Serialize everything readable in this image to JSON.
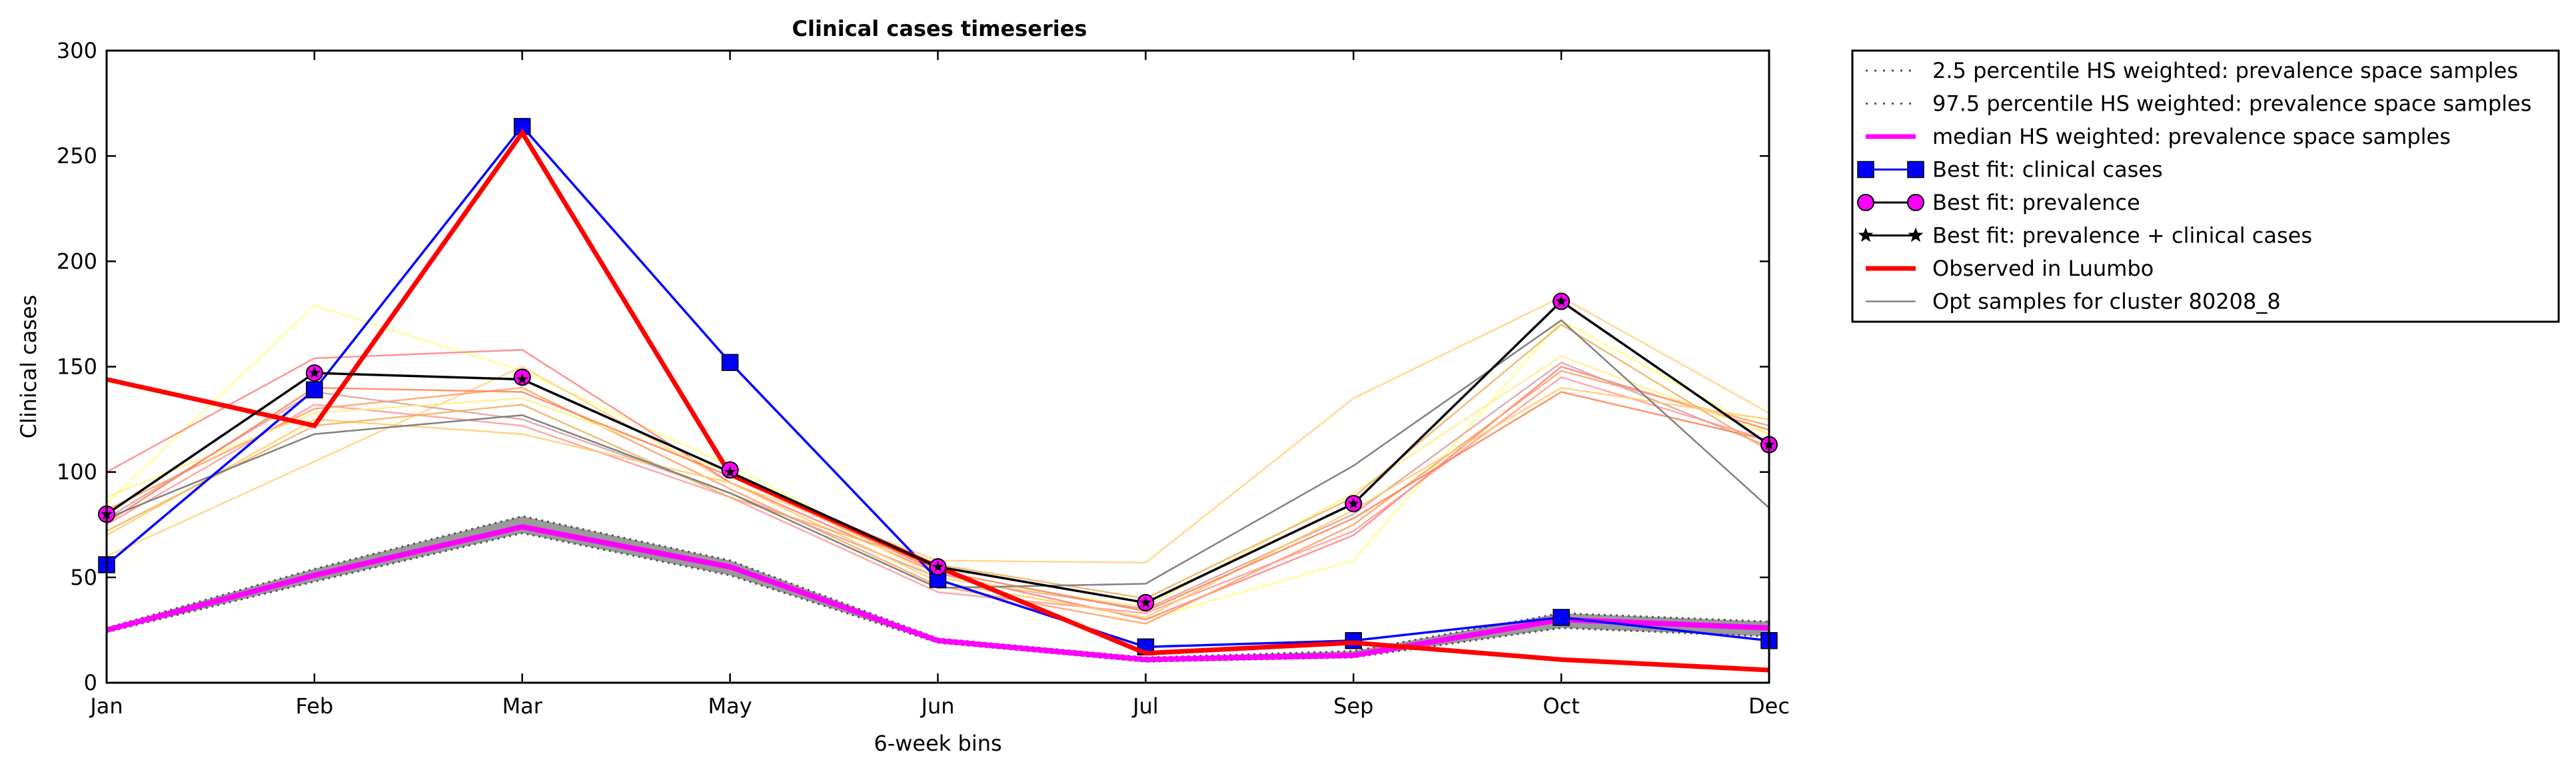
{
  "chart_data": {
    "type": "line",
    "title": "Clinical cases timeseries",
    "xlabel": "6-week bins",
    "ylabel": "Clinical cases",
    "categories": [
      "Jan",
      "Feb",
      "Mar",
      "May",
      "Jun",
      "Jul",
      "Sep",
      "Oct",
      "Dec"
    ],
    "ylim": [
      0,
      300
    ],
    "yticks": [
      0,
      50,
      100,
      150,
      200,
      250,
      300
    ],
    "grid": false,
    "legend_position": "outside-right",
    "series": [
      {
        "name": "2.5 percentile HS weighted: prevalence space samples",
        "style": "dotted",
        "color": "#555555",
        "values": [
          24,
          48,
          71,
          51,
          19,
          10,
          12,
          26,
          22
        ]
      },
      {
        "name": "97.5 percentile HS weighted: prevalence space samples",
        "style": "dotted",
        "color": "#555555",
        "values": [
          26,
          54,
          79,
          58,
          21,
          12,
          15,
          33,
          29
        ]
      },
      {
        "name": "median HS weighted: prevalence space samples",
        "style": "thick",
        "color": "#ff00ff",
        "values": [
          25,
          51,
          74,
          55,
          20,
          11,
          13,
          30,
          26
        ]
      },
      {
        "name": "Best fit: clinical cases",
        "style": "square-marker",
        "color": "#0000ff",
        "values": [
          56,
          139,
          264,
          152,
          49,
          17,
          20,
          31,
          20
        ]
      },
      {
        "name": "Best fit: prevalence",
        "style": "circle-marker",
        "color": "#ff00ff",
        "values": [
          80,
          147,
          145,
          101,
          55,
          38,
          85,
          181,
          113
        ]
      },
      {
        "name": "Best fit: prevalence + clinical cases",
        "style": "star-marker",
        "color": "#000000",
        "values": [
          80,
          147,
          144,
          100,
          55,
          38,
          85,
          181,
          113
        ]
      },
      {
        "name": "Observed in Luumbo",
        "style": "thick",
        "color": "#ff0000",
        "values": [
          144,
          122,
          261,
          99,
          55,
          14,
          19,
          11,
          6
        ]
      },
      {
        "name": "Opt samples for cluster 80208_8",
        "style": "thin",
        "color": "#808080",
        "values": [
          78,
          118,
          127,
          90,
          45,
          47,
          103,
          172,
          83
        ]
      }
    ],
    "sample_lines": [
      {
        "color": "#ffff80",
        "values": [
          85,
          179,
          148,
          103,
          52,
          30,
          58,
          172,
          118
        ]
      },
      {
        "color": "#ffd27f",
        "values": [
          60,
          105,
          150,
          95,
          58,
          57,
          135,
          183,
          128
        ]
      },
      {
        "color": "#ff8080",
        "values": [
          100,
          154,
          158,
          95,
          52,
          30,
          70,
          150,
          120
        ]
      },
      {
        "color": "#ffa060",
        "values": [
          82,
          130,
          140,
          92,
          46,
          28,
          75,
          148,
          122
        ]
      },
      {
        "color": "#ff9999",
        "values": [
          75,
          132,
          122,
          88,
          43,
          33,
          72,
          145,
          115
        ]
      },
      {
        "color": "#d9a0a0",
        "values": [
          78,
          138,
          125,
          90,
          50,
          35,
          80,
          152,
          112
        ]
      },
      {
        "color": "#ffcc66",
        "values": [
          70,
          125,
          118,
          95,
          48,
          31,
          82,
          140,
          125
        ]
      },
      {
        "color": "#ffee88",
        "values": [
          88,
          128,
          135,
          100,
          50,
          36,
          90,
          155,
          118
        ]
      },
      {
        "color": "#ff7f50",
        "values": [
          76,
          140,
          138,
          98,
          53,
          34,
          78,
          138,
          115
        ]
      },
      {
        "color": "#f0b060",
        "values": [
          72,
          122,
          132,
          88,
          56,
          40,
          88,
          170,
          110
        ]
      }
    ]
  }
}
